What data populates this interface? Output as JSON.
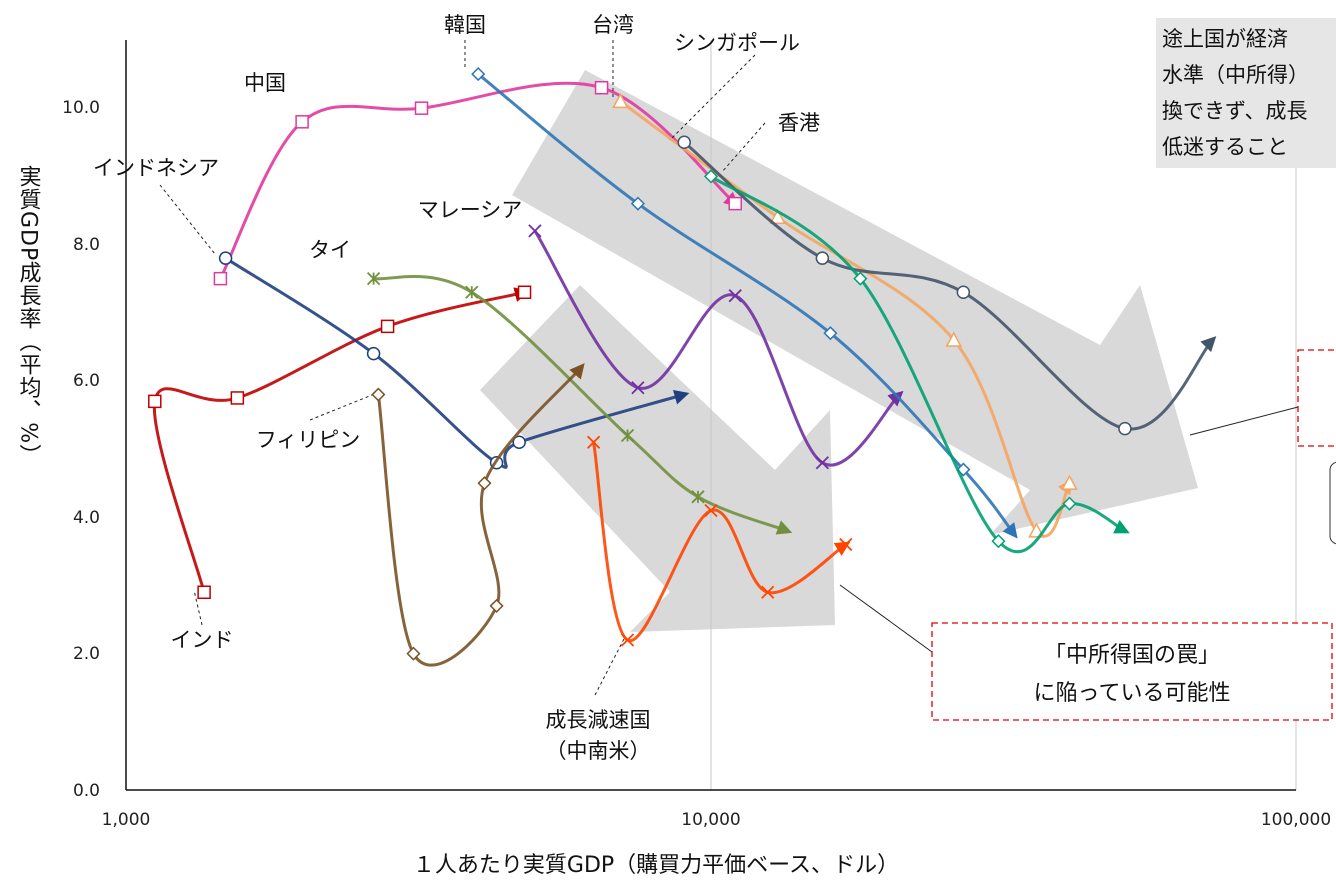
{
  "chart_data": {
    "type": "line",
    "title": "",
    "xlabel": "１人あたり実質GDP（購買力平価ベース、ドル）",
    "ylabel": "実質GDP成長率（平均、%）",
    "x_scale": "log",
    "xlim": [
      1000,
      100000
    ],
    "ylim": [
      0,
      11
    ],
    "x_ticks": [
      "1,000",
      "10,000",
      "100,000"
    ],
    "y_ticks": [
      "0.0",
      "2.0",
      "4.0",
      "6.0",
      "8.0",
      "10.0"
    ],
    "grid": "vertical lines at x-ticks",
    "series": [
      {
        "name": "中国",
        "color": "#e0399d",
        "marker": "square",
        "points": [
          [
            1450,
            7.5
          ],
          [
            2000,
            9.8
          ],
          [
            3200,
            10.0
          ],
          [
            6500,
            10.3
          ],
          [
            11000,
            8.6
          ]
        ]
      },
      {
        "name": "インド",
        "color": "#c00000",
        "marker": "square",
        "points": [
          [
            1360,
            2.9
          ],
          [
            1120,
            5.7
          ],
          [
            1550,
            5.75
          ],
          [
            2800,
            6.8
          ],
          [
            4800,
            7.3
          ]
        ]
      },
      {
        "name": "インドネシア",
        "color": "#1f3f7f",
        "marker": "circle",
        "points": [
          [
            1480,
            7.8
          ],
          [
            2650,
            6.4
          ],
          [
            4300,
            4.8
          ],
          [
            4700,
            5.1
          ],
          [
            9000,
            5.8
          ]
        ]
      },
      {
        "name": "タイ",
        "color": "#70903e",
        "marker": "asterisk",
        "points": [
          [
            2650,
            7.5
          ],
          [
            3900,
            7.3
          ],
          [
            7200,
            5.2
          ],
          [
            9500,
            4.3
          ],
          [
            13500,
            3.8
          ]
        ]
      },
      {
        "name": "フィリピン",
        "color": "#7a5226",
        "marker": "diamond",
        "points": [
          [
            2700,
            5.8
          ],
          [
            3100,
            2.0
          ],
          [
            4300,
            2.7
          ],
          [
            4100,
            4.5
          ],
          [
            6000,
            6.2
          ]
        ]
      },
      {
        "name": "マレーシア",
        "color": "#7030a0",
        "marker": "cross",
        "points": [
          [
            5000,
            8.2
          ],
          [
            7500,
            5.9
          ],
          [
            11000,
            7.25
          ],
          [
            15500,
            4.8
          ],
          [
            21000,
            5.8
          ]
        ]
      },
      {
        "name": "成長減速国（中南米）",
        "color": "#ff4500",
        "marker": "x",
        "points": [
          [
            6300,
            5.1
          ],
          [
            7200,
            2.2
          ],
          [
            10000,
            4.1
          ],
          [
            12500,
            2.9
          ],
          [
            17000,
            3.6
          ]
        ]
      },
      {
        "name": "韓国",
        "color": "#2e75b6",
        "marker": "diamond",
        "points": [
          [
            4000,
            10.5
          ],
          [
            7500,
            8.6
          ],
          [
            16000,
            6.7
          ],
          [
            27000,
            4.7
          ],
          [
            33000,
            3.75
          ]
        ]
      },
      {
        "name": "台湾",
        "color": "#f4a460",
        "marker": "triangle",
        "points": [
          [
            7000,
            10.1
          ],
          [
            13000,
            8.4
          ],
          [
            26000,
            6.6
          ],
          [
            36000,
            3.8
          ],
          [
            41000,
            4.5
          ]
        ]
      },
      {
        "name": "シンガポール",
        "color": "#44546a",
        "marker": "circle",
        "points": [
          [
            9000,
            9.5
          ],
          [
            15500,
            7.8
          ],
          [
            27000,
            7.3
          ],
          [
            51000,
            5.3
          ],
          [
            72000,
            6.6
          ]
        ]
      },
      {
        "name": "香港",
        "color": "#00a070",
        "marker": "diamond",
        "points": [
          [
            10000,
            9.0
          ],
          [
            18000,
            7.5
          ],
          [
            31000,
            3.65
          ],
          [
            41000,
            4.2
          ],
          [
            51000,
            3.8
          ]
        ]
      }
    ],
    "annotations": {
      "definition_box": [
        "途上国が経済",
        "水準（中所得）",
        "換できず、成長",
        "低迷すること"
      ],
      "trap_box": [
        "「中所得国の罠」",
        "に陥っている可能性"
      ]
    }
  }
}
